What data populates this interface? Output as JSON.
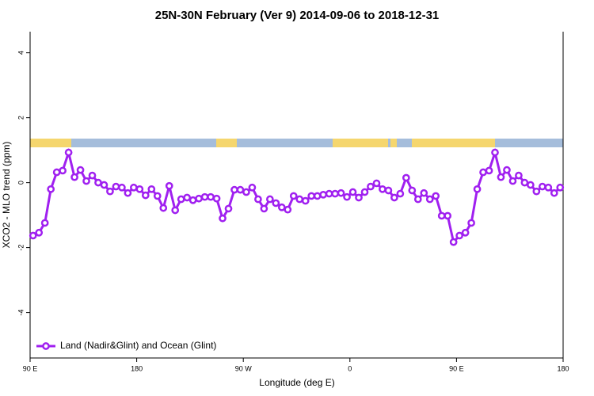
{
  "chart_data": {
    "type": "line",
    "title": "25N-30N February (Ver 9)   2014-09-06 to 2018-12-31",
    "xlabel": "Longitude (deg E)",
    "ylabel": "XCO2 - MLO trend (ppm)",
    "xlim": [
      90,
      540
    ],
    "ylim": [
      -5.4,
      4.65
    ],
    "xticks": [
      {
        "value": 90,
        "label": "90 E"
      },
      180,
      {
        "value": 270,
        "label": "90 W"
      },
      {
        "value": 360,
        "label": "0"
      },
      {
        "value": 450,
        "label": "90 E"
      },
      {
        "value": 540,
        "label": "180"
      }
    ],
    "yticks": [
      -4,
      -2,
      0,
      2,
      4
    ],
    "legend": "bottom-left",
    "x": [
      92.5,
      97.5,
      102.5,
      107.5,
      112.5,
      117.5,
      122.5,
      127.5,
      132.5,
      137.5,
      142.5,
      147.5,
      152.5,
      157.5,
      162.5,
      167.5,
      172.5,
      177.5,
      182.5,
      187.5,
      192.5,
      197.5,
      202.5,
      207.5,
      212.5,
      217.5,
      222.5,
      227.5,
      232.5,
      237.5,
      242.5,
      247.5,
      252.5,
      257.5,
      262.5,
      267.5,
      272.5,
      277.5,
      282.5,
      287.5,
      292.5,
      297.5,
      302.5,
      307.5,
      312.5,
      317.5,
      322.5,
      327.5,
      332.5,
      337.5,
      342.5,
      347.5,
      352.5,
      357.5,
      362.5,
      367.5,
      372.5,
      377.5,
      382.5,
      387.5,
      392.5,
      397.5,
      402.5,
      407.5,
      412.5,
      417.5,
      422.5,
      427.5,
      432.5,
      437.5,
      442.5,
      447.5,
      452.5,
      457.5,
      462.5,
      467.5,
      472.5,
      477.5,
      482.5,
      487.5,
      492.5,
      497.5,
      502.5,
      507.5,
      512.5,
      517.5,
      522.5,
      527.5,
      532.5,
      537.5
    ],
    "series": [
      {
        "name": "Land (Nadir&Glint) and Ocean (Glint)",
        "color": "#a020f0",
        "values": [
          -1.63,
          -1.54,
          -1.24,
          -0.2,
          0.32,
          0.37,
          0.93,
          0.17,
          0.39,
          0.05,
          0.22,
          0,
          -0.07,
          -0.27,
          -0.12,
          -0.15,
          -0.32,
          -0.15,
          -0.2,
          -0.39,
          -0.2,
          -0.41,
          -0.78,
          -0.1,
          -0.85,
          -0.51,
          -0.46,
          -0.54,
          -0.49,
          -0.44,
          -0.44,
          -0.49,
          -1.1,
          -0.8,
          -0.22,
          -0.22,
          -0.29,
          -0.15,
          -0.51,
          -0.8,
          -0.51,
          -0.63,
          -0.76,
          -0.83,
          -0.41,
          -0.51,
          -0.56,
          -0.41,
          -0.41,
          -0.37,
          -0.34,
          -0.34,
          -0.32,
          -0.44,
          -0.29,
          -0.46,
          -0.29,
          -0.12,
          -0.02,
          -0.2,
          -0.24,
          -0.46,
          -0.34,
          0.15,
          -0.24,
          -0.51,
          -0.32,
          -0.51,
          -0.41,
          -1.02,
          -1.02,
          -1.83,
          -1.63,
          -1.54,
          -1.24,
          -0.2,
          0.32,
          0.37,
          0.93,
          0.17,
          0.39,
          0.05,
          0.22,
          0,
          -0.07,
          -0.27,
          -0.12,
          -0.15,
          -0.32,
          -0.15
        ]
      }
    ]
  }
}
